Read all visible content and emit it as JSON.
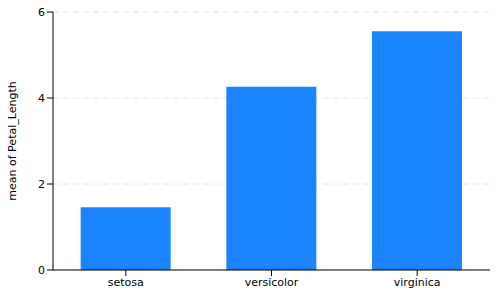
{
  "chart_data": {
    "type": "bar",
    "categories": [
      "setosa",
      "versicolor",
      "virginica"
    ],
    "values": [
      1.46,
      4.26,
      5.55
    ],
    "color": "#1a85ff",
    "ylabel": "mean of Petal_Length",
    "ylim": [
      0,
      6
    ],
    "yticks": [
      0,
      2,
      4,
      6
    ],
    "grid": true
  }
}
